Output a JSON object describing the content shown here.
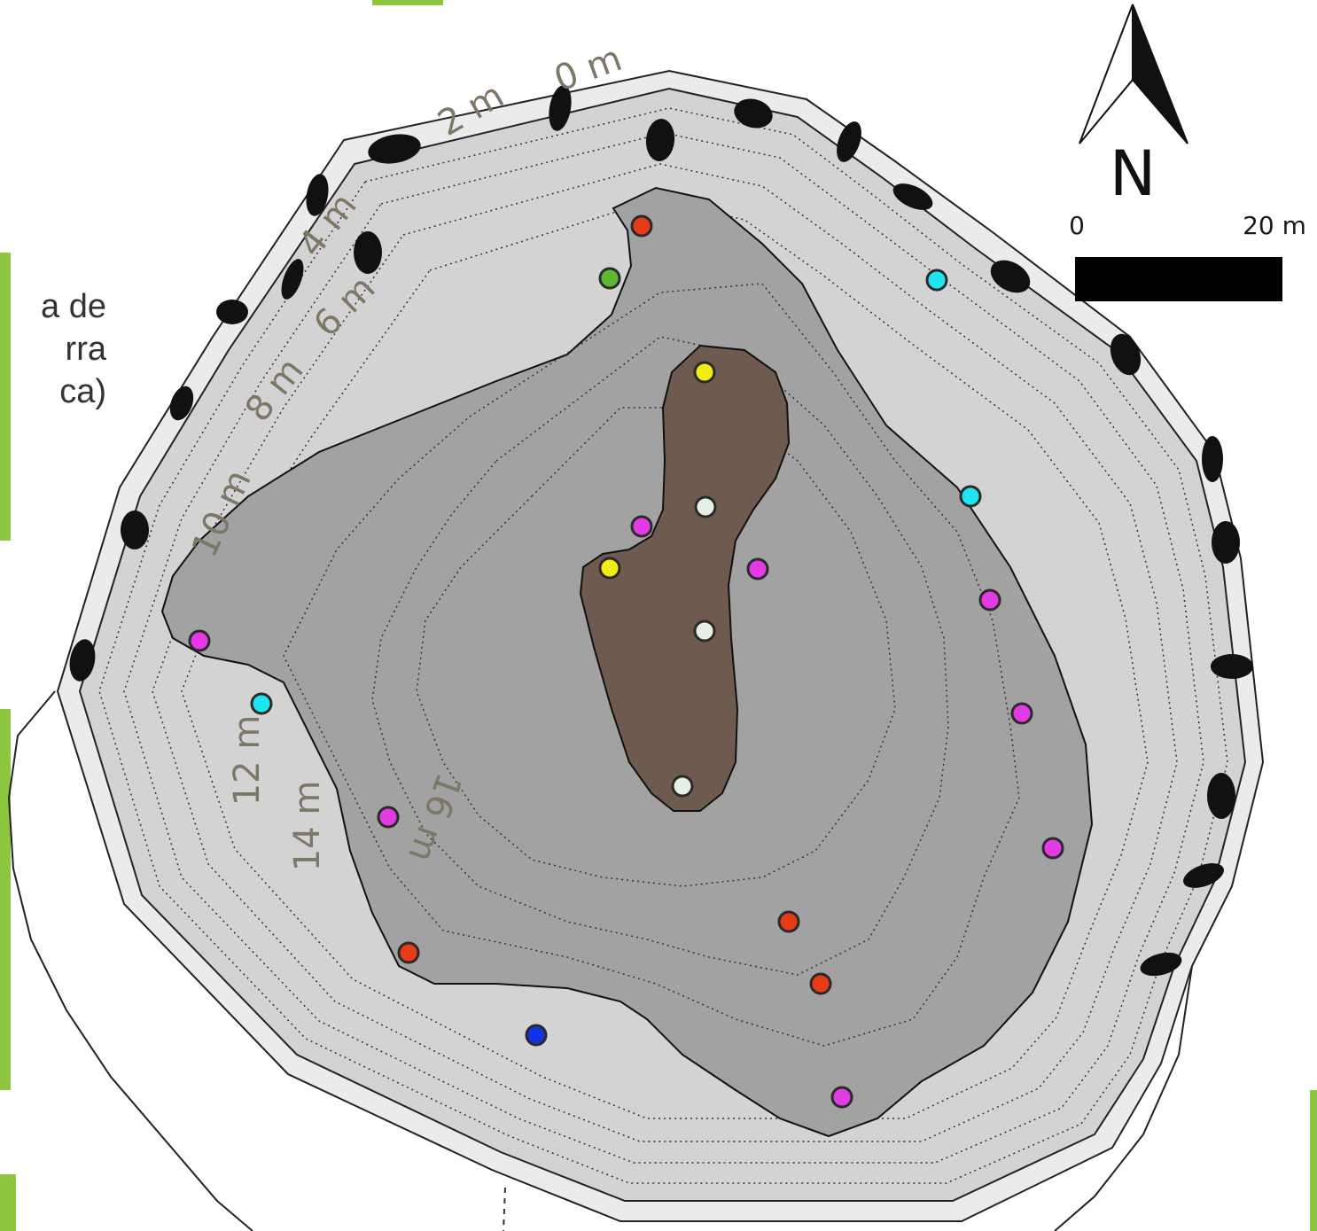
{
  "legend_fragment": [
    "a de",
    "rra",
    "ca)"
  ],
  "north_arrow": {
    "label": "N"
  },
  "scale_bar": {
    "start_label": "0",
    "end_label": "20 m"
  },
  "depth_labels": [
    "0 m",
    "2 m",
    "4 m",
    "6 m",
    "8 m",
    "10 m",
    "12 m",
    "14 m",
    "16 m"
  ],
  "colors": {
    "outer_rim": "#ebebeb",
    "slope_zone": "#d3d3d3",
    "deep_zone": "#a2a2a2",
    "core_zone": "#6e5a4e",
    "rocks": "#111111",
    "accent_green": "#8ec63f",
    "point_red": "#e83a14",
    "point_green": "#5cb82e",
    "point_cyan": "#1fe5ef",
    "point_yellow": "#f2ec15",
    "point_magenta": "#e43ae6",
    "point_white": "#e6efe8",
    "point_blue": "#1433e0"
  }
}
